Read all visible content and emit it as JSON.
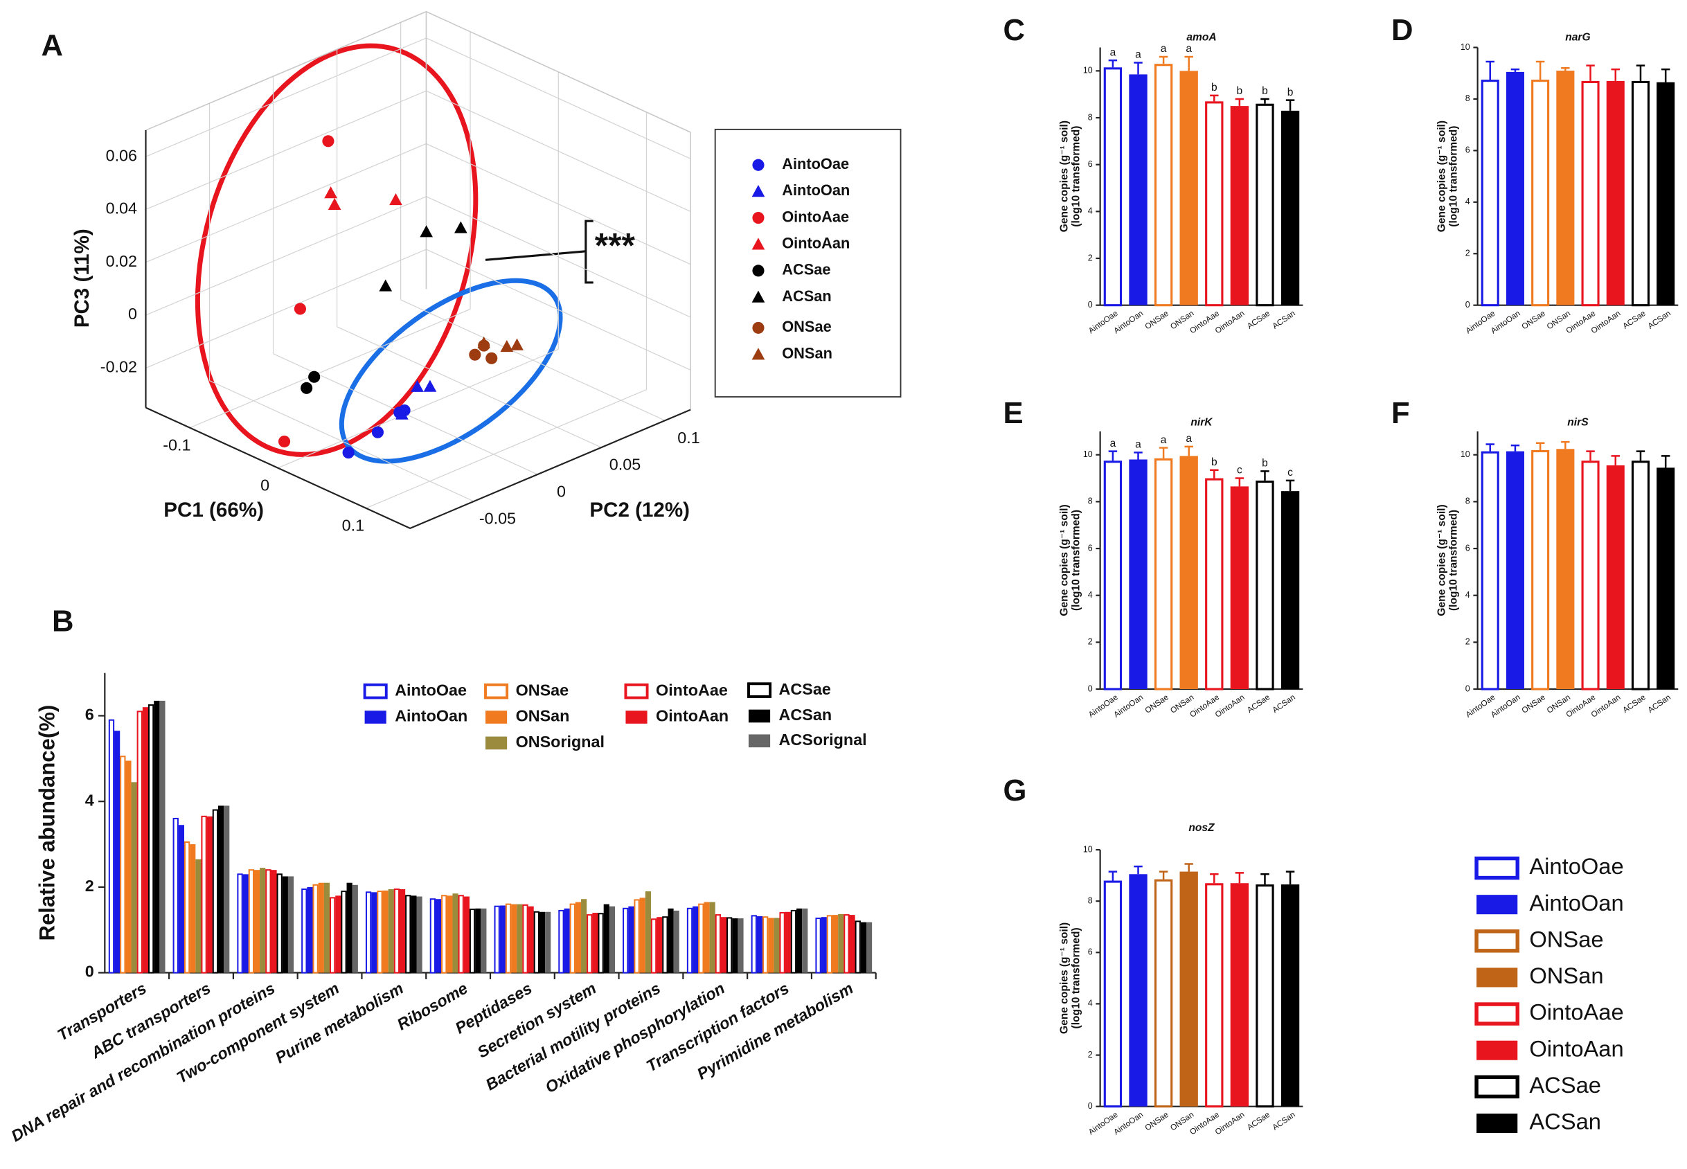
{
  "chart_data": [
    {
      "panel": "A",
      "type": "scatter3d",
      "xlabel": "PC1 (66%)",
      "ylabel": "PC2 (12%)",
      "zlabel": "PC3 (11%)",
      "xlim": [
        -0.15,
        0.15
      ],
      "ylim": [
        -0.1,
        0.12
      ],
      "zlim": [
        -0.035,
        0.07
      ],
      "xticks": [
        -0.1,
        0,
        0.1
      ],
      "yticks": [
        -0.05,
        0,
        0.05,
        0.1
      ],
      "zticks": [
        -0.02,
        0,
        0.02,
        0.04,
        0.06
      ],
      "annotation": "***",
      "series": [
        {
          "name": "AintoOae",
          "color": "#1a1ae6",
          "marker": "circle",
          "x": [
            0.08,
            0.08,
            0.08,
            0.08
          ],
          "y": [
            -0.1,
            -0.077,
            -0.06,
            -0.056
          ],
          "z": [
            -0.017,
            -0.014,
            -0.01,
            -0.01
          ]
        },
        {
          "name": "AintoOan",
          "color": "#1a1ae6",
          "marker": "triangle",
          "x": [
            0.08,
            0.08,
            0.08
          ],
          "y": [
            -0.046,
            -0.036,
            -0.058
          ],
          "z": [
            -0.003,
            -0.005,
            -0.011
          ]
        },
        {
          "name": "OintoAae",
          "color": "#e8141e",
          "marker": "circle",
          "x": [
            -0.05,
            -0.05,
            0
          ],
          "y": [
            -0.026,
            -0.048,
            -0.095
          ],
          "z": [
            0.066,
            0.007,
            -0.026
          ]
        },
        {
          "name": "OintoAan",
          "color": "#e8141e",
          "marker": "triangle",
          "x": [
            -0.05,
            -0.05,
            -0.05
          ],
          "y": [
            -0.024,
            -0.021,
            0.027
          ],
          "z": [
            0.046,
            0.041,
            0.033
          ]
        },
        {
          "name": "ACSae",
          "color": "#000000",
          "marker": "circle",
          "x": [
            -0.05,
            -0.05
          ],
          "y": [
            -0.043,
            -0.037
          ],
          "z": [
            -0.024,
            -0.021
          ]
        },
        {
          "name": "ACSan",
          "color": "#000000",
          "marker": "triangle",
          "x": [
            -0.05,
            -0.05,
            -0.05
          ],
          "y": [
            0.051,
            0.078,
            0.019
          ],
          "z": [
            0.016,
            0.012,
            0.002
          ]
        },
        {
          "name": "ONSae",
          "color": "#9c3c10",
          "marker": "circle",
          "x": [
            0.05,
            0.05,
            0.05
          ],
          "y": [
            0.02,
            0.033,
            0.027
          ],
          "z": [
            -0.009,
            -0.013,
            -0.007
          ]
        },
        {
          "name": "ONSan",
          "color": "#9c3c10",
          "marker": "triangle",
          "x": [
            0.05,
            0.05,
            0.05
          ],
          "y": [
            0.027,
            0.045,
            0.053
          ],
          "z": [
            -0.006,
            -0.011,
            -0.012
          ]
        }
      ]
    },
    {
      "panel": "B",
      "type": "grouped_bar",
      "ylabel": "Relative abundance(%)",
      "ylim": [
        0,
        7
      ],
      "yticks": [
        0,
        2,
        4,
        6
      ],
      "categories": [
        "Transporters",
        "ABC transporters",
        "DNA repair and recombination proteins",
        "Two-component system",
        "Purine metabolism",
        "Ribosome",
        "Peptidases",
        "Secretion system",
        "Bacterial motility proteins",
        "Oxidative phosphorylation",
        "Transcription factors",
        "Pyrimidine metabolism"
      ],
      "series": [
        {
          "name": "AintoOae",
          "color": "#1a1ae6",
          "style": "outline",
          "values": [
            5.9,
            3.6,
            2.3,
            1.95,
            1.88,
            1.72,
            1.55,
            1.45,
            1.5,
            1.5,
            1.33,
            1.27
          ]
        },
        {
          "name": "AintoOan",
          "color": "#1a1ae6",
          "style": "solid",
          "values": [
            5.65,
            3.45,
            2.3,
            2.0,
            1.88,
            1.72,
            1.57,
            1.5,
            1.55,
            1.55,
            1.32,
            1.3
          ]
        },
        {
          "name": "ONSae",
          "color": "#f07a20",
          "style": "outline",
          "values": [
            5.05,
            3.05,
            2.4,
            2.05,
            1.9,
            1.8,
            1.6,
            1.6,
            1.7,
            1.6,
            1.3,
            1.33
          ]
        },
        {
          "name": "ONSan",
          "color": "#f07a20",
          "style": "solid",
          "values": [
            4.95,
            3.0,
            2.4,
            2.1,
            1.92,
            1.8,
            1.6,
            1.65,
            1.75,
            1.65,
            1.28,
            1.35
          ]
        },
        {
          "name": "ONSorignal",
          "color": "#9a8c3c",
          "style": "solid",
          "values": [
            4.45,
            2.65,
            2.45,
            2.1,
            1.95,
            1.85,
            1.6,
            1.72,
            1.9,
            1.65,
            1.28,
            1.37
          ]
        },
        {
          "name": "OintoAae",
          "color": "#e8141e",
          "style": "outline",
          "values": [
            6.1,
            3.65,
            2.4,
            1.75,
            1.95,
            1.8,
            1.58,
            1.35,
            1.25,
            1.35,
            1.4,
            1.35
          ]
        },
        {
          "name": "OintoAan",
          "color": "#e8141e",
          "style": "solid",
          "values": [
            6.2,
            3.65,
            2.4,
            1.8,
            1.95,
            1.78,
            1.55,
            1.4,
            1.3,
            1.3,
            1.42,
            1.35
          ]
        },
        {
          "name": "ACSae",
          "color": "#000000",
          "style": "outline",
          "values": [
            6.25,
            3.8,
            2.3,
            1.9,
            1.8,
            1.48,
            1.42,
            1.38,
            1.3,
            1.28,
            1.45,
            1.2
          ]
        },
        {
          "name": "ACSan",
          "color": "#000000",
          "style": "solid",
          "values": [
            6.35,
            3.9,
            2.25,
            2.1,
            1.8,
            1.5,
            1.42,
            1.6,
            1.5,
            1.27,
            1.5,
            1.18
          ]
        },
        {
          "name": "ACSorignal",
          "color": "#666666",
          "style": "solid",
          "values": [
            6.35,
            3.9,
            2.25,
            2.05,
            1.78,
            1.5,
            1.42,
            1.55,
            1.45,
            1.27,
            1.5,
            1.18
          ]
        }
      ]
    },
    {
      "panel": "C",
      "type": "bar",
      "title": "amoA",
      "ylabel": [
        "Gene copies  (g⁻¹ soil)",
        "(log10 transformed)"
      ],
      "ylim": [
        0,
        11
      ],
      "yticks": [
        0,
        2,
        4,
        6,
        8,
        10
      ],
      "categories": [
        "AintoOae",
        "AintoOan",
        "ONSae",
        "ONSan",
        "OintoAae",
        "OintoAan",
        "ACSae",
        "ACSan"
      ],
      "colors": [
        "#1a1ae6",
        "#1a1ae6",
        "#f07a20",
        "#f07a20",
        "#e8141e",
        "#e8141e",
        "#000000",
        "#000000"
      ],
      "styles": [
        "outline",
        "solid",
        "outline",
        "solid",
        "outline",
        "solid",
        "outline",
        "solid"
      ],
      "values": [
        10.15,
        9.85,
        10.3,
        10.0,
        8.7,
        8.5,
        8.6,
        8.3
      ],
      "errors": [
        0.3,
        0.5,
        0.3,
        0.6,
        0.25,
        0.3,
        0.2,
        0.45
      ],
      "annotations": [
        "a",
        "a",
        "a",
        "a",
        "b",
        "b",
        "b",
        "b"
      ]
    },
    {
      "panel": "D",
      "type": "bar",
      "title": "narG",
      "ylabel": [
        "Gene copies  (g⁻¹ soil)",
        "(log10 transformed)"
      ],
      "ylim": [
        0,
        10
      ],
      "yticks": [
        0,
        2,
        4,
        6,
        8,
        10
      ],
      "categories": [
        "AintoOae",
        "AintoOan",
        "ONSae",
        "ONSan",
        "OintoAae",
        "OintoAan",
        "ACSae",
        "ACSan"
      ],
      "colors": [
        "#1a1ae6",
        "#1a1ae6",
        "#f07a20",
        "#f07a20",
        "#e8141e",
        "#e8141e",
        "#000000",
        "#000000"
      ],
      "styles": [
        "outline",
        "solid",
        "outline",
        "solid",
        "outline",
        "solid",
        "outline",
        "solid"
      ],
      "values": [
        8.75,
        9.05,
        8.75,
        9.1,
        8.7,
        8.7,
        8.7,
        8.65
      ],
      "errors": [
        0.7,
        0.1,
        0.7,
        0.1,
        0.6,
        0.45,
        0.6,
        0.5
      ]
    },
    {
      "panel": "E",
      "type": "bar",
      "title": "nirK",
      "ylabel": [
        "Gene copies  (g⁻¹ soil)",
        "(log10 transformed)"
      ],
      "ylim": [
        0,
        11
      ],
      "yticks": [
        0,
        2,
        4,
        6,
        8,
        10
      ],
      "categories": [
        "AintoOae",
        "AintoOan",
        "ONSae",
        "ONSan",
        "OintoAae",
        "OintoAan",
        "ACSae",
        "ACSan"
      ],
      "colors": [
        "#1a1ae6",
        "#1a1ae6",
        "#f07a20",
        "#f07a20",
        "#e8141e",
        "#e8141e",
        "#000000",
        "#000000"
      ],
      "styles": [
        "outline",
        "solid",
        "outline",
        "solid",
        "outline",
        "solid",
        "outline",
        "solid"
      ],
      "values": [
        9.75,
        9.8,
        9.85,
        9.95,
        9.0,
        8.65,
        8.9,
        8.45
      ],
      "errors": [
        0.4,
        0.3,
        0.45,
        0.4,
        0.35,
        0.35,
        0.4,
        0.45
      ],
      "annotations": [
        "a",
        "a",
        "a",
        "a",
        "b",
        "c",
        "b",
        "c"
      ]
    },
    {
      "panel": "F",
      "type": "bar",
      "title": "nirS",
      "ylabel": [
        "Gene copies  (g⁻¹ soil)",
        "(log10 transformed)"
      ],
      "ylim": [
        0,
        11
      ],
      "yticks": [
        0,
        2,
        4,
        6,
        8,
        10
      ],
      "categories": [
        "AintoOae",
        "AintoOan",
        "ONSae",
        "ONSan",
        "OintoAae",
        "OintoAan",
        "ACSae",
        "ACSan"
      ],
      "colors": [
        "#1a1ae6",
        "#1a1ae6",
        "#f07a20",
        "#f07a20",
        "#e8141e",
        "#e8141e",
        "#000000",
        "#000000"
      ],
      "styles": [
        "outline",
        "solid",
        "outline",
        "solid",
        "outline",
        "solid",
        "outline",
        "solid"
      ],
      "values": [
        10.15,
        10.15,
        10.2,
        10.25,
        9.75,
        9.55,
        9.75,
        9.45
      ],
      "errors": [
        0.3,
        0.25,
        0.3,
        0.3,
        0.4,
        0.4,
        0.4,
        0.5
      ]
    },
    {
      "panel": "G",
      "type": "bar",
      "title": "nosZ",
      "ylabel": [
        "Gene copies  (g⁻¹ soil)",
        "(log10 transformed)"
      ],
      "ylim": [
        0,
        10
      ],
      "yticks": [
        0,
        2,
        4,
        6,
        8,
        10
      ],
      "categories": [
        "AintoOae",
        "AintoOan",
        "ONSae",
        "ONSan",
        "OintoAae",
        "OintoAan",
        "ACSae",
        "ACSan"
      ],
      "colors": [
        "#1a1ae6",
        "#1a1ae6",
        "#c06418",
        "#c06418",
        "#e8141e",
        "#e8141e",
        "#000000",
        "#000000"
      ],
      "styles": [
        "outline",
        "solid",
        "outline",
        "solid",
        "outline",
        "solid",
        "outline",
        "solid"
      ],
      "values": [
        8.8,
        9.05,
        8.85,
        9.15,
        8.7,
        8.7,
        8.65,
        8.65
      ],
      "errors": [
        0.35,
        0.3,
        0.3,
        0.3,
        0.35,
        0.4,
        0.4,
        0.5
      ],
      "legend": [
        "AintoOae",
        "AintoOan",
        "ONSae",
        "ONSan",
        "OintoAae",
        "OintoAan",
        "ACSae",
        "ACSan"
      ]
    }
  ]
}
